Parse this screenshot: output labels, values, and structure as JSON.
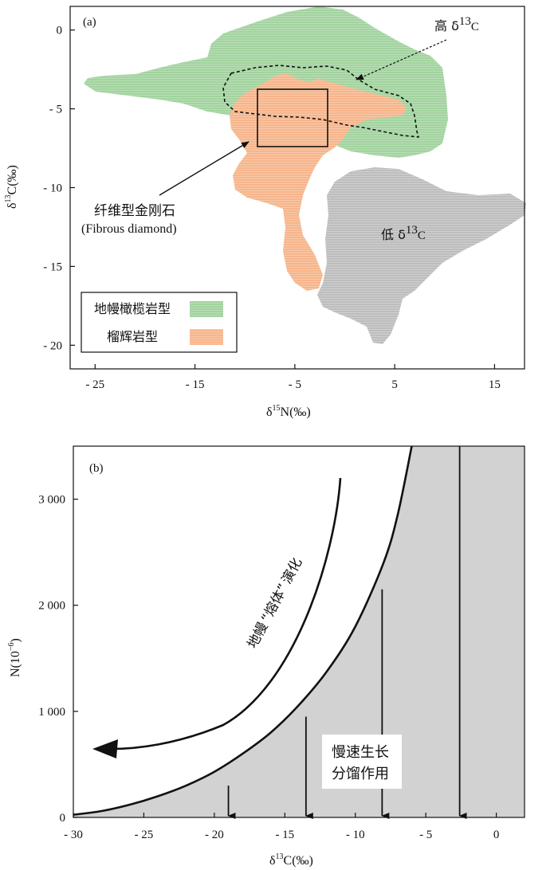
{
  "chart_data": [
    {
      "panel": "(a)",
      "type": "scatter",
      "xlabel": "δ¹⁵N(‰)",
      "ylabel": "δ¹³C(‰)",
      "xlim": [
        -27.5,
        18
      ],
      "ylim": [
        -21.5,
        1.5
      ],
      "x_ticks": [
        "- 25",
        "- 15",
        "- 5",
        "5",
        "15"
      ],
      "y_ticks": [
        "0",
        "- 5",
        "- 10",
        "- 15",
        "- 20"
      ],
      "regions": [
        {
          "name": "地幔橄榄岩型",
          "color": "#a3d3a0",
          "approx_x_range": [
            -11,
            9
          ],
          "approx_y_range": [
            -8,
            1
          ]
        },
        {
          "name": "榴辉岩型",
          "color": "#f5b48a",
          "approx_x_range": [
            -10,
            6
          ],
          "approx_y_range": [
            -16,
            -3
          ]
        },
        {
          "name": "低δ¹³C",
          "color": "#c0c0c0",
          "approx_x_range": [
            -2,
            17
          ],
          "approx_y_range": [
            -20,
            -9
          ]
        },
        {
          "name": "高δ¹³C",
          "style": "dashed outline",
          "approx_x_range": [
            -9,
            4
          ],
          "approx_y_range": [
            -7,
            -3
          ]
        }
      ],
      "box": {
        "label": "纤维型金刚石",
        "label_en": "(Fibrous diamond)",
        "x_range": [
          -8.5,
          -2
        ],
        "y_range": [
          -7.5,
          -4
        ]
      },
      "legend": [
        {
          "label": "地幔橄榄岩型",
          "color": "#a3d3a0"
        },
        {
          "label": "榴辉岩型",
          "color": "#f5b48a"
        }
      ],
      "annotations": {
        "panel_label": "(a)",
        "high_label": "高 δ",
        "high_sup": "13",
        "high_tail": "C",
        "low_label": "低 δ",
        "low_sup": "13",
        "low_tail": "C",
        "fibrous_cn": "纤维型金刚石",
        "fibrous_en": "(Fibrous diamond)"
      },
      "legend_placement": "bottom-left",
      "grid": false
    },
    {
      "panel": "(b)",
      "type": "line",
      "xlabel": "δ¹³C(‰)",
      "ylabel": "N(10⁻⁶)",
      "xlim": [
        -30,
        2
      ],
      "ylim": [
        0,
        3500
      ],
      "x_ticks": [
        "- 30",
        "- 25",
        "- 20",
        "- 15",
        "- 10",
        "- 5",
        "0"
      ],
      "y_ticks": [
        "0",
        "1 000",
        "2 000",
        "3 000"
      ],
      "curve_points": [
        {
          "x": -30,
          "y": 25
        },
        {
          "x": -28,
          "y": 60
        },
        {
          "x": -26,
          "y": 120
        },
        {
          "x": -24,
          "y": 200
        },
        {
          "x": -22,
          "y": 300
        },
        {
          "x": -20,
          "y": 430
        },
        {
          "x": -18,
          "y": 600
        },
        {
          "x": -16,
          "y": 800
        },
        {
          "x": -14,
          "y": 1060
        },
        {
          "x": -12,
          "y": 1380
        },
        {
          "x": -10,
          "y": 1800
        },
        {
          "x": -8,
          "y": 2400
        },
        {
          "x": -7,
          "y": 2850
        },
        {
          "x": -6,
          "y": 3500
        }
      ],
      "shaded_region": "below curve",
      "arrows": [
        {
          "x": -19,
          "from_y": 300,
          "to_y": 0
        },
        {
          "x": -13.5,
          "from_y": 950,
          "to_y": 0
        },
        {
          "x": -8.1,
          "from_y": 2150,
          "to_y": 0
        },
        {
          "x": -2.6,
          "from_y": 3500,
          "to_y": 0
        }
      ],
      "annotations": {
        "panel_label": "(b)",
        "evolution_a": "地幔",
        "evolution_b": "“熔体”",
        "evolution_c": "演化",
        "slow_growth_1": "慢速生长",
        "slow_growth_2": "分馏作用"
      },
      "grid": false
    }
  ],
  "axes_text": {
    "a_xlabel_pre": "δ",
    "a_xlabel_sup": "15",
    "a_xlabel_post": "N(‰)",
    "a_ylabel_pre": "δ",
    "a_ylabel_sup": "13",
    "a_ylabel_post": "C(‰)",
    "b_xlabel_pre": "δ",
    "b_xlabel_sup": "13",
    "b_xlabel_post": "C(‰)",
    "b_ylabel_pre": "N(10",
    "b_ylabel_sup": "−6",
    "b_ylabel_post": ")"
  }
}
